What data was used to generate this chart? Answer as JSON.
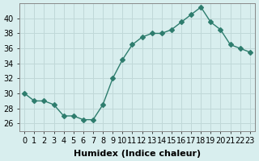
{
  "x": [
    0,
    1,
    2,
    3,
    4,
    5,
    6,
    7,
    8,
    9,
    10,
    11,
    12,
    13,
    14,
    15,
    16,
    17,
    18,
    19,
    20,
    21,
    22,
    23
  ],
  "y": [
    30,
    29,
    29,
    28.5,
    27,
    27,
    26.5,
    26.5,
    28.5,
    32,
    34.5,
    36.5,
    37.5,
    38,
    38,
    38.5,
    39.5,
    40.5,
    41.5,
    39.5,
    38.5,
    36.5,
    36,
    35.5
  ],
  "line_color": "#2e7d6e",
  "marker": "D",
  "marker_size": 3,
  "bg_color": "#d8eeee",
  "grid_color": "#c0d8d8",
  "xlabel": "Humidex (Indice chaleur)",
  "xlim": [
    -0.5,
    23.5
  ],
  "ylim": [
    25,
    42
  ],
  "yticks": [
    26,
    28,
    30,
    32,
    34,
    36,
    38,
    40
  ],
  "xtick_labels": [
    "0",
    "1",
    "2",
    "3",
    "4",
    "5",
    "6",
    "7",
    "8",
    "9",
    "10",
    "11",
    "12",
    "13",
    "14",
    "15",
    "16",
    "17",
    "18",
    "19",
    "20",
    "21",
    "22",
    "23"
  ],
  "tick_fontsize": 7,
  "label_fontsize": 8
}
